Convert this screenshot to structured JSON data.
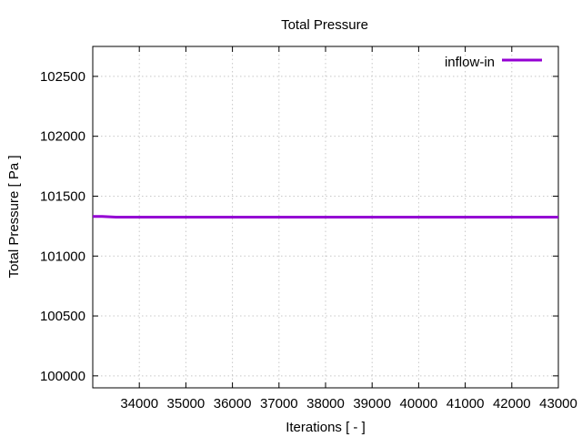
{
  "chart_data": {
    "type": "line",
    "title": "Total Pressure",
    "xlabel": "Iterations [ - ]",
    "ylabel": "Total Pressure [ Pa ]",
    "xlim": [
      33000,
      43000
    ],
    "ylim": [
      99900,
      102750
    ],
    "xticks": [
      34000,
      35000,
      36000,
      37000,
      38000,
      39000,
      40000,
      41000,
      42000,
      43000
    ],
    "yticks": [
      100000,
      100500,
      101000,
      101500,
      102000,
      102500
    ],
    "grid": true,
    "legend_position": "top-right",
    "series": [
      {
        "name": "inflow-in",
        "color": "#9400d3",
        "x": [
          33000,
          33200,
          33500,
          34000,
          35000,
          36000,
          37000,
          38000,
          39000,
          40000,
          41000,
          42000,
          43000
        ],
        "y": [
          101330,
          101330,
          101325,
          101325,
          101325,
          101325,
          101325,
          101325,
          101325,
          101325,
          101325,
          101325,
          101325
        ]
      }
    ]
  }
}
